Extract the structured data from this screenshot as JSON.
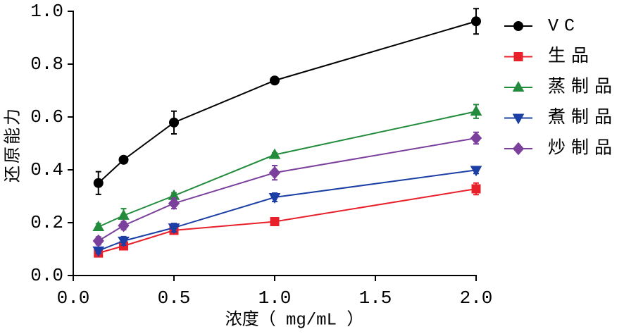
{
  "chart_data": {
    "type": "line",
    "xlabel": "浓度（ mg/mL ）",
    "ylabel": "还原能力",
    "xlim": [
      0,
      2.0
    ],
    "ylim": [
      0,
      1.0
    ],
    "xticks": [
      0,
      0.5,
      1.0,
      1.5,
      2.0
    ],
    "xtick_labels": [
      "0.0",
      "0.5",
      "1.0",
      "1.5",
      "2.0"
    ],
    "yticks": [
      0,
      0.2,
      0.4,
      0.6,
      0.8,
      1.0
    ],
    "ytick_labels": [
      "0.0",
      "0.2",
      "0.4",
      "0.6",
      "0.8",
      "1.0"
    ],
    "grid": false,
    "legend": "top-right",
    "error_bars": true,
    "x": [
      0.125,
      0.25,
      0.5,
      1.0,
      2.0
    ],
    "series": [
      {
        "name": "VC",
        "color": "#000000",
        "marker": "circle",
        "values": [
          0.35,
          0.438,
          0.579,
          0.738,
          0.962
        ],
        "errors": [
          0.043,
          0.008,
          0.043,
          0.013,
          0.048
        ]
      },
      {
        "name": "生品",
        "color": "#e8202a",
        "marker": "square",
        "values": [
          0.085,
          0.112,
          0.171,
          0.204,
          0.328
        ],
        "errors": [
          0.01,
          0.012,
          0.01,
          0.007,
          0.022
        ]
      },
      {
        "name": "蒸制品",
        "color": "#228b3c",
        "marker": "triangle-up",
        "values": [
          0.184,
          0.227,
          0.302,
          0.457,
          0.621
        ],
        "errors": [
          0.012,
          0.026,
          0.011,
          0.007,
          0.026
        ]
      },
      {
        "name": "煮制品",
        "color": "#1c3fa5",
        "marker": "triangle-down",
        "values": [
          0.094,
          0.131,
          0.181,
          0.296,
          0.399
        ],
        "errors": [
          0.01,
          0.016,
          0.016,
          0.016,
          0.013
        ]
      },
      {
        "name": "炒制品",
        "color": "#7b3f9c",
        "marker": "diamond",
        "values": [
          0.131,
          0.189,
          0.273,
          0.389,
          0.52
        ],
        "errors": [
          0.015,
          0.015,
          0.02,
          0.027,
          0.022
        ]
      }
    ]
  }
}
